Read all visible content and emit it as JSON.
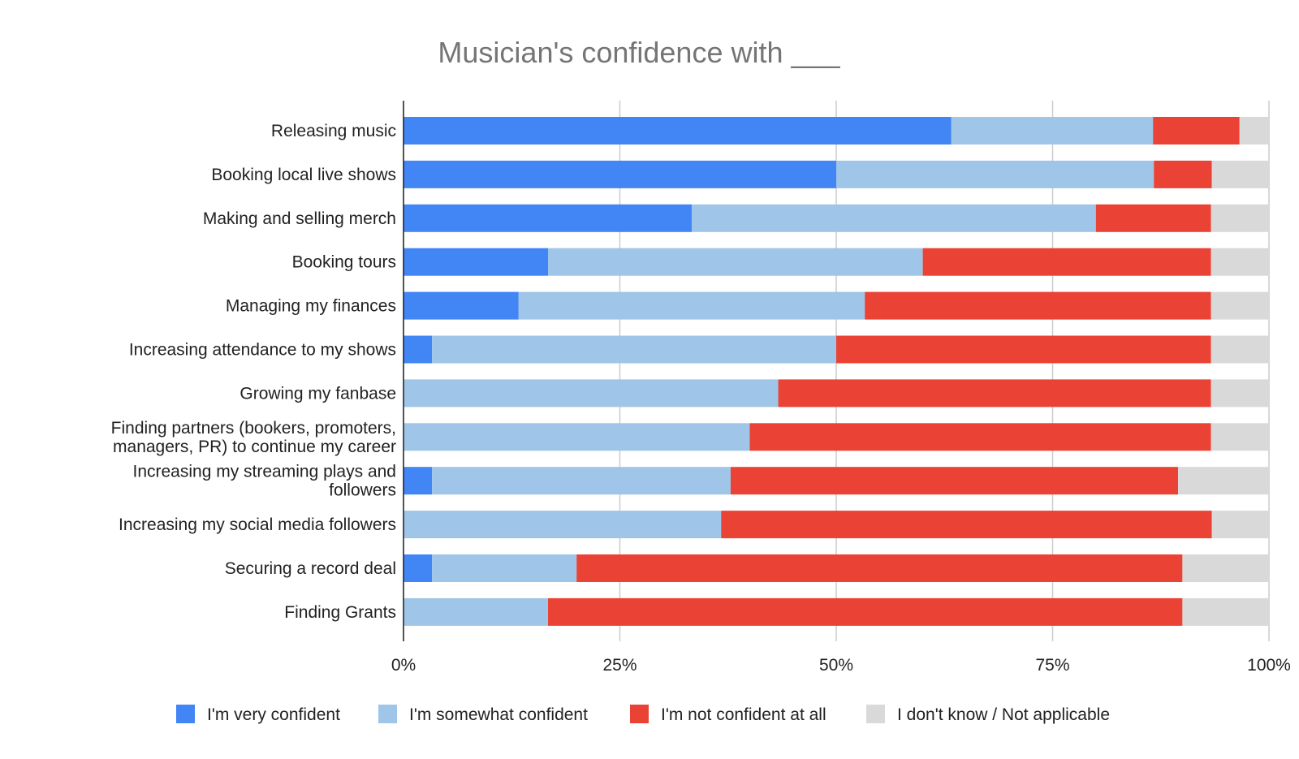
{
  "chart_data": {
    "type": "bar",
    "orientation": "horizontal",
    "stacked": "percent",
    "title": "Musician's confidence with ___",
    "xlabel": "",
    "ylabel": "",
    "xlim": [
      0,
      100
    ],
    "grid": true,
    "legend_position": "bottom",
    "x_ticks": [
      "0%",
      "25%",
      "50%",
      "75%",
      "100%"
    ],
    "categories": [
      [
        "Releasing music"
      ],
      [
        "Booking local live shows"
      ],
      [
        "Making and selling merch"
      ],
      [
        "Booking tours"
      ],
      [
        "Managing my finances"
      ],
      [
        "Increasing attendance to my shows"
      ],
      [
        "Growing my fanbase"
      ],
      [
        "Finding partners (bookers, promoters,",
        "managers, PR) to continue my career"
      ],
      [
        "Increasing my streaming plays and",
        "followers"
      ],
      [
        "Increasing my social media followers"
      ],
      [
        "Securing a record deal"
      ],
      [
        "Finding Grants"
      ]
    ],
    "series": [
      {
        "name": "I'm very confident",
        "color": "#4285f4",
        "values": [
          63.3,
          50.0,
          33.3,
          16.7,
          13.3,
          3.3,
          0,
          0,
          3.3,
          0,
          3.3,
          0
        ]
      },
      {
        "name": "I'm somewhat confident",
        "color": "#9fc5e8",
        "values": [
          23.3,
          36.7,
          46.7,
          43.3,
          40.0,
          46.7,
          43.3,
          40.0,
          34.5,
          36.7,
          16.7,
          16.7
        ]
      },
      {
        "name": "I'm not confident at all",
        "color": "#ea4335",
        "values": [
          10.0,
          6.7,
          13.3,
          33.3,
          40.0,
          43.3,
          50.0,
          53.3,
          51.7,
          56.7,
          70.0,
          73.3
        ]
      },
      {
        "name": "I don't know / Not applicable",
        "color": "#d9d9d9",
        "values": [
          3.4,
          6.6,
          6.7,
          6.7,
          6.7,
          6.7,
          6.7,
          6.7,
          10.5,
          6.6,
          10.0,
          10.0
        ]
      }
    ]
  }
}
